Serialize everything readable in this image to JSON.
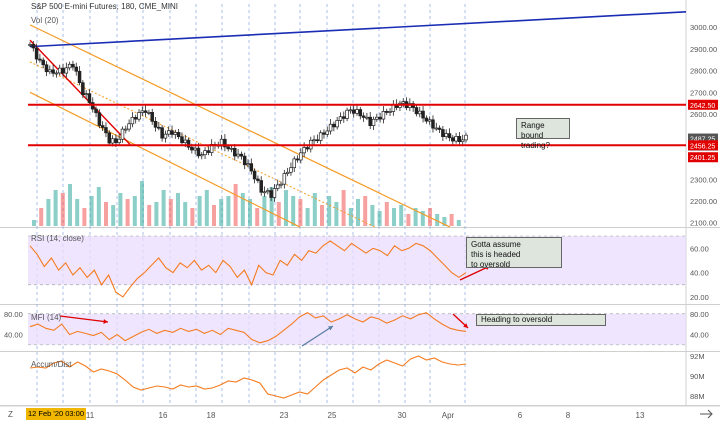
{
  "title": "S&P 500 E-mini Futures, 180, CME_MINI",
  "colors": {
    "up": "#2ca89a",
    "down": "#ef5350",
    "support": "#e00000",
    "trend_blue": "#1a2db5",
    "channel": "#f59b25",
    "osc_line": "#f57c20",
    "osc_band": "#eadcff",
    "vgrid": "#6b8fd8"
  },
  "panes": {
    "volume_label": "Vol (20)",
    "rsi_label": "RSI (14, close)",
    "mfi_label": "MFI (14)",
    "ad_label": "Accum/Dist"
  },
  "annotations": {
    "range_note": [
      "Range bound",
      "trading?"
    ],
    "rsi_note": [
      "Gotta assume",
      "this is headed",
      "to oversold"
    ],
    "mfi_note": "Heading to oversold"
  },
  "bottom_bar": {
    "z_button": "Z",
    "date_badge": "12 Feb '20  03:00",
    "end_icon": "arrow-right-icon"
  },
  "chart_data": [
    {
      "type": "candlestick",
      "title": "S&P 500 E-mini Futures, 180, CME_MINI",
      "y_ticks": [
        2100,
        2200,
        2300,
        2400,
        2500,
        2600,
        2700,
        2800,
        2900,
        3000
      ],
      "ylim": [
        2085,
        3060
      ],
      "price_labels": [
        {
          "text": "2642.50",
          "value": 2642.5,
          "color": "#e00000"
        },
        {
          "text": "2487.25",
          "value": 2487.25,
          "color": "#555555"
        },
        {
          "text": "17:57",
          "value": 2455,
          "color": "#555555"
        },
        {
          "text": "2456.25",
          "value": 2456.25,
          "color": "#e00000"
        },
        {
          "text": "2401.25",
          "value": 2401.25,
          "color": "#e00000"
        }
      ],
      "x_ticks": [
        "11",
        "16",
        "18",
        "23",
        "25",
        "30",
        "Apr",
        "6",
        "8",
        "13"
      ],
      "levels": {
        "resistance": 2642.5,
        "support": 2456.25
      },
      "close_path": [
        [
          0,
          2920
        ],
        [
          3,
          2840
        ],
        [
          6,
          2790
        ],
        [
          10,
          2800
        ],
        [
          13,
          2830
        ],
        [
          16,
          2700
        ],
        [
          18,
          2660
        ],
        [
          21,
          2560
        ],
        [
          24,
          2480
        ],
        [
          26,
          2470
        ],
        [
          29,
          2540
        ],
        [
          32,
          2590
        ],
        [
          35,
          2620
        ],
        [
          37,
          2570
        ],
        [
          40,
          2500
        ],
        [
          43,
          2520
        ],
        [
          46,
          2480
        ],
        [
          49,
          2440
        ],
        [
          52,
          2410
        ],
        [
          55,
          2450
        ],
        [
          58,
          2470
        ],
        [
          61,
          2430
        ],
        [
          64,
          2400
        ],
        [
          67,
          2340
        ],
        [
          70,
          2250
        ],
        [
          73,
          2230
        ],
        [
          76,
          2290
        ],
        [
          79,
          2360
        ],
        [
          82,
          2420
        ],
        [
          85,
          2470
        ],
        [
          88,
          2500
        ],
        [
          91,
          2540
        ],
        [
          94,
          2580
        ],
        [
          97,
          2620
        ],
        [
          100,
          2600
        ],
        [
          103,
          2560
        ],
        [
          106,
          2590
        ],
        [
          109,
          2620
        ],
        [
          112,
          2650
        ],
        [
          115,
          2640
        ],
        [
          118,
          2600
        ],
        [
          121,
          2560
        ],
        [
          124,
          2520
        ],
        [
          127,
          2490
        ],
        [
          130,
          2480
        ],
        [
          132,
          2490
        ]
      ],
      "volume_heights": [
        0.1,
        0.3,
        0.45,
        0.6,
        0.55,
        0.7,
        0.45,
        0.3,
        0.5,
        0.65,
        0.4,
        0.35,
        0.55,
        0.45,
        0.5,
        0.75,
        0.35,
        0.4,
        0.6,
        0.45,
        0.55,
        0.4,
        0.3,
        0.5,
        0.6,
        0.35,
        0.45,
        0.5,
        0.7,
        0.55,
        0.45,
        0.3,
        0.5,
        0.65,
        0.4,
        0.6,
        0.5,
        0.45,
        0.3,
        0.55,
        0.35,
        0.5,
        0.4,
        0.6,
        0.3,
        0.45,
        0.5,
        0.35,
        0.25,
        0.4,
        0.3,
        0.35,
        0.2,
        0.3,
        0.25,
        0.3,
        0.2,
        0.15,
        0.2,
        0.1
      ]
    },
    {
      "type": "line",
      "name": "RSI (14, close)",
      "y_ticks": [
        20,
        40,
        60
      ],
      "ylim": [
        15,
        75
      ],
      "bands": [
        30,
        70
      ],
      "values": [
        62,
        55,
        45,
        52,
        42,
        48,
        38,
        44,
        36,
        42,
        30,
        38,
        24,
        20,
        28,
        35,
        40,
        46,
        52,
        44,
        40,
        48,
        44,
        50,
        42,
        46,
        40,
        50,
        45,
        36,
        42,
        30,
        46,
        40,
        38,
        50,
        46,
        55,
        50,
        58,
        56,
        62,
        66,
        62,
        58,
        64,
        60,
        56,
        60,
        58,
        54,
        62,
        58,
        60,
        64,
        62,
        58,
        52,
        46,
        40,
        36,
        40
      ]
    },
    {
      "type": "line",
      "name": "MFI (14)",
      "y_ticks": [
        40,
        80
      ],
      "ylim": [
        10,
        95
      ],
      "bands": [
        20,
        80
      ],
      "values": [
        55,
        60,
        52,
        48,
        60,
        40,
        46,
        42,
        38,
        44,
        30,
        40,
        28,
        36,
        44,
        50,
        42,
        48,
        44,
        52,
        46,
        50,
        42,
        48,
        40,
        52,
        48,
        44,
        30,
        24,
        28,
        36,
        48,
        60,
        74,
        82,
        72,
        76,
        64,
        70,
        78,
        70,
        64,
        74,
        70,
        62,
        68,
        76,
        70,
        78,
        82,
        70,
        60,
        52,
        48,
        46
      ]
    },
    {
      "type": "line",
      "name": "Accum/Dist",
      "y_ticks": [
        "88M",
        "90M",
        "92M"
      ],
      "ylim": [
        87.2,
        92.4
      ],
      "values": [
        90.8,
        90.9,
        90.8,
        91.3,
        91.5,
        90.9,
        91.4,
        91.0,
        90.4,
        90.7,
        90.5,
        90.2,
        89.6,
        88.9,
        88.6,
        88.8,
        89.0,
        88.9,
        88.7,
        89.1,
        88.9,
        89.0,
        88.7,
        88.8,
        89.1,
        89.5,
        89.4,
        89.8,
        89.6,
        89.3,
        88.2,
        88.0,
        87.8,
        88.1,
        88.4,
        88.2,
        88.9,
        89.6,
        90.1,
        90.6,
        90.8,
        90.3,
        90.9,
        90.6,
        91.2,
        91.6,
        91.3,
        91.0,
        91.7,
        92.0,
        91.6,
        91.8,
        91.4,
        91.2,
        91.1,
        91.2
      ]
    }
  ]
}
